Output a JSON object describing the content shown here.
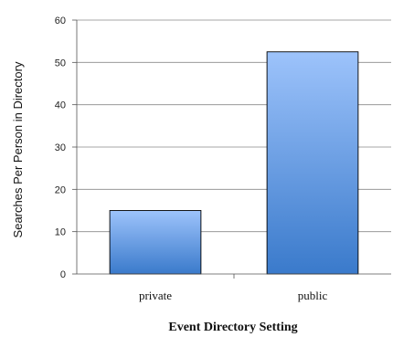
{
  "chart_data": {
    "type": "bar",
    "title": "",
    "categories": [
      "private",
      "public"
    ],
    "values": [
      15,
      52.5
    ],
    "xlabel": "Event Directory Setting",
    "ylabel": "Searches Per Person in Directory",
    "ylim": [
      0,
      60
    ],
    "yticks": [
      0,
      10,
      20,
      30,
      40,
      50,
      60
    ],
    "grid": true,
    "bar_color_top": "#9dc3fb",
    "bar_color_bottom": "#3a7acb",
    "bar_stroke": "#000000",
    "gridline_color": "#8a8a8a"
  }
}
